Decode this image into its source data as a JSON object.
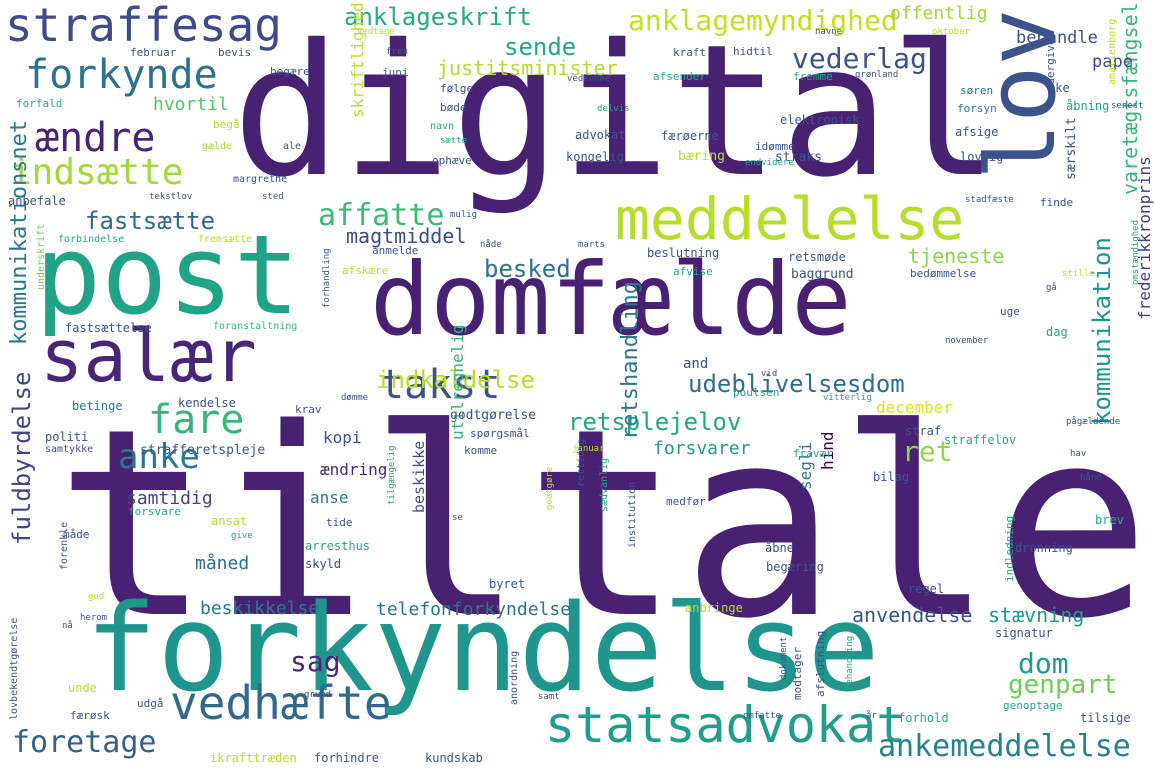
{
  "words": [
    {
      "text": "tiltale",
      "color": "#482173"
    },
    {
      "text": "digital",
      "color": "#482173"
    },
    {
      "text": "forkyndelse",
      "color": "#1f968b"
    },
    {
      "text": "domfælde",
      "color": "#482173"
    },
    {
      "text": "post",
      "color": "#20a386"
    },
    {
      "text": "lov",
      "color": "#3b528b"
    },
    {
      "text": "salær",
      "color": "#482677"
    },
    {
      "text": "meddelelse",
      "color": "#b5de2b"
    },
    {
      "text": "statsadvokat",
      "color": "#1f9e89"
    },
    {
      "text": "vedhæfte",
      "color": "#31688e"
    },
    {
      "text": "straffesag",
      "color": "#3e4a89"
    },
    {
      "text": "forkynde",
      "color": "#2c728e"
    },
    {
      "text": "takst",
      "color": "#3b528b"
    },
    {
      "text": "ændre",
      "color": "#482475"
    },
    {
      "text": "indsætte",
      "color": "#a2da37"
    },
    {
      "text": "fare",
      "color": "#35b779"
    },
    {
      "text": "anke",
      "color": "#2a788e"
    },
    {
      "text": "ankemeddelelse",
      "color": "#26828e"
    },
    {
      "text": "foretage",
      "color": "#355f8d"
    },
    {
      "text": "genpart",
      "color": "#6ece58"
    },
    {
      "text": "dom",
      "color": "#1e9c89"
    },
    {
      "text": "sag",
      "color": "#482878"
    },
    {
      "text": "ret",
      "color": "#8fd744"
    },
    {
      "text": "fuldbyrdelse",
      "color": "#404688"
    },
    {
      "text": "kommunikationsnet",
      "color": "#2a788e"
    },
    {
      "text": "varetægtsfængsel",
      "color": "#35b779"
    },
    {
      "text": "kommunikation",
      "color": "#1f968b"
    },
    {
      "text": "anklageskrift",
      "color": "#25ab82"
    },
    {
      "text": "anklagemyndighed",
      "color": "#c2df23"
    },
    {
      "text": "sende",
      "color": "#22a884"
    },
    {
      "text": "vederlag",
      "color": "#3b528b"
    },
    {
      "text": "fastsætte",
      "color": "#31688e"
    },
    {
      "text": "affatte",
      "color": "#3aba76"
    },
    {
      "text": "besked",
      "color": "#2d708e"
    },
    {
      "text": "indkaldelse",
      "color": "#b8de29"
    },
    {
      "text": "udeblivelsesdom",
      "color": "#2f6c8e"
    },
    {
      "text": "retsplejelov",
      "color": "#22a884"
    },
    {
      "text": "retshandling",
      "color": "#2a788e"
    },
    {
      "text": "justitsminister",
      "color": "#b0dd2f"
    },
    {
      "text": "tjeneste",
      "color": "#8bd646"
    },
    {
      "text": "magtmiddel",
      "color": "#3e4a89"
    },
    {
      "text": "skriftlighed",
      "color": "#b8de29"
    },
    {
      "text": "hvortil",
      "color": "#54c568"
    },
    {
      "text": "anvendelse",
      "color": "#3b528b"
    },
    {
      "text": "stævning",
      "color": "#1f9a8a"
    },
    {
      "text": "telefonforkyndelse",
      "color": "#2c728e"
    },
    {
      "text": "beskikkelse",
      "color": "#2a788e"
    },
    {
      "text": "frederikkronprins",
      "color": "#433e85"
    },
    {
      "text": "offentlig",
      "color": "#a2da37"
    },
    {
      "text": "behandle",
      "color": "#3b528b"
    },
    {
      "text": "pape",
      "color": "#3e4a89"
    },
    {
      "text": "december",
      "color": "#dde318"
    },
    {
      "text": "forsvarer",
      "color": "#1f9e89"
    },
    {
      "text": "samtidig",
      "color": "#414487"
    },
    {
      "text": "måned",
      "color": "#2e6e8e"
    },
    {
      "text": "kopi",
      "color": "#3b528b"
    },
    {
      "text": "ændring",
      "color": "#482878"
    },
    {
      "text": "anse",
      "color": "#2a788e"
    },
    {
      "text": "segli",
      "color": "#2a788e"
    },
    {
      "text": "hind",
      "color": "#440154"
    },
    {
      "text": "utilregnelig",
      "color": "#35b779"
    },
    {
      "text": "beskikke",
      "color": "#3b528b"
    },
    {
      "text": "samtykke",
      "color": "#3e4a89"
    },
    {
      "text": "forsvare",
      "color": "#22a884"
    },
    {
      "text": "strafferetspleje",
      "color": "#3b528b"
    },
    {
      "text": "kendelse",
      "color": "#3b528b"
    },
    {
      "text": "betinge",
      "color": "#2a788e"
    },
    {
      "text": "politi",
      "color": "#3b528b"
    },
    {
      "text": "fastsættelse",
      "color": "#3b528b"
    },
    {
      "text": "foranstaltning",
      "color": "#35b779"
    },
    {
      "text": "underskrift",
      "color": "#6ece58"
    },
    {
      "text": "anbefale",
      "color": "#3b528b"
    },
    {
      "text": "forbindelse",
      "color": "#22a884"
    },
    {
      "text": "fremsætte",
      "color": "#b8de29"
    },
    {
      "text": "forfald",
      "color": "#22a884"
    },
    {
      "text": "begå",
      "color": "#b8de29"
    },
    {
      "text": "gælde",
      "color": "#a2da37"
    },
    {
      "text": "ale",
      "color": "#3b528b"
    },
    {
      "text": "margrethe",
      "color": "#3b528b"
    },
    {
      "text": "tekstlov",
      "color": "#3b528b"
    },
    {
      "text": "sted",
      "color": "#3b528b"
    },
    {
      "text": "februar",
      "color": "#3b528b"
    },
    {
      "text": "bevis",
      "color": "#3b528b"
    },
    {
      "text": "juni",
      "color": "#3b528b"
    },
    {
      "text": "begære",
      "color": "#3b528b"
    },
    {
      "text": "følge",
      "color": "#3b528b"
    },
    {
      "text": "bøde",
      "color": "#3b528b"
    },
    {
      "text": "navn",
      "color": "#22a884"
    },
    {
      "text": "sætte",
      "color": "#22a884"
    },
    {
      "text": "ophæve",
      "color": "#3b528b"
    },
    {
      "text": "delvis",
      "color": "#22a884"
    },
    {
      "text": "vedtage",
      "color": "#b8de29"
    },
    {
      "text": "frem",
      "color": "#3b528b"
    },
    {
      "text": "vedkomme",
      "color": "#3b528b"
    },
    {
      "text": "afsender",
      "color": "#22a884"
    },
    {
      "text": "kraft",
      "color": "#3b528b"
    },
    {
      "text": "hidtil",
      "color": "#3b528b"
    },
    {
      "text": "navne",
      "color": "#3b528b"
    },
    {
      "text": "oktober",
      "color": "#b8de29"
    },
    {
      "text": "fremme",
      "color": "#22a884"
    },
    {
      "text": "grønland",
      "color": "#3b528b"
    },
    {
      "text": "ske",
      "color": "#3b528b"
    },
    {
      "text": "åbning",
      "color": "#22a884"
    },
    {
      "text": "søren",
      "color": "#2a788e"
    },
    {
      "text": "forsyn",
      "color": "#2a788e"
    },
    {
      "text": "undergive",
      "color": "#3b528b"
    },
    {
      "text": "amalienborg",
      "color": "#b8de29"
    },
    {
      "text": "senest",
      "color": "#3b528b"
    },
    {
      "text": "særskilt",
      "color": "#3b528b"
    },
    {
      "text": "afsige",
      "color": "#3b528b"
    },
    {
      "text": "lovlig",
      "color": "#3b528b"
    },
    {
      "text": "straks",
      "color": "#3b528b"
    },
    {
      "text": "elektronisk",
      "color": "#3b528b"
    },
    {
      "text": "advokat",
      "color": "#3b528b"
    },
    {
      "text": "færøerne",
      "color": "#3b528b"
    },
    {
      "text": "bæring",
      "color": "#b8de29"
    },
    {
      "text": "kongelig",
      "color": "#3b528b"
    },
    {
      "text": "idømme",
      "color": "#3b528b"
    },
    {
      "text": "endvidere",
      "color": "#22a884"
    },
    {
      "text": "stadfæste",
      "color": "#3b528b"
    },
    {
      "text": "finde",
      "color": "#3b528b"
    },
    {
      "text": "mulig",
      "color": "#3b528b"
    },
    {
      "text": "nåde",
      "color": "#3b528b"
    },
    {
      "text": "marts",
      "color": "#3b528b"
    },
    {
      "text": "anmelde",
      "color": "#3b528b"
    },
    {
      "text": "beslutning",
      "color": "#3b528b"
    },
    {
      "text": "retsmøde",
      "color": "#3b528b"
    },
    {
      "text": "afvise",
      "color": "#22a884"
    },
    {
      "text": "baggrund",
      "color": "#3b528b"
    },
    {
      "text": "bedømmelse",
      "color": "#3b528b"
    },
    {
      "text": "stille",
      "color": "#b8de29"
    },
    {
      "text": "gå",
      "color": "#3b528b"
    },
    {
      "text": "afskære",
      "color": "#b8de29"
    },
    {
      "text": "uge",
      "color": "#3b528b"
    },
    {
      "text": "omstændighed",
      "color": "#22a884"
    },
    {
      "text": "november",
      "color": "#3b528b"
    },
    {
      "text": "forhandling",
      "color": "#3b528b"
    },
    {
      "text": "vid",
      "color": "#3b528b"
    },
    {
      "text": "poulsen",
      "color": "#22a884"
    },
    {
      "text": "krav",
      "color": "#3b528b"
    },
    {
      "text": "dømme",
      "color": "#3b528b"
    },
    {
      "text": "vitterlig",
      "color": "#22a884"
    },
    {
      "text": "godtgørelse",
      "color": "#3b528b"
    },
    {
      "text": "spørgsmål",
      "color": "#3b528b"
    },
    {
      "text": "komme",
      "color": "#3b528b"
    },
    {
      "text": "januar",
      "color": "#b8de29"
    },
    {
      "text": "pågældende",
      "color": "#3b528b"
    },
    {
      "text": "straf",
      "color": "#3b528b"
    },
    {
      "text": "straffelov",
      "color": "#22a884"
    },
    {
      "text": "hav",
      "color": "#3b528b"
    },
    {
      "text": "fravær",
      "color": "#22a884"
    },
    {
      "text": "bilag",
      "color": "#3b528b"
    },
    {
      "text": "hånd",
      "color": "#3b528b"
    },
    {
      "text": "medfør",
      "color": "#3b528b"
    },
    {
      "text": "tilgængelig",
      "color": "#22a884"
    },
    {
      "text": "godtgøre",
      "color": "#b8de29"
    },
    {
      "text": "rettidig",
      "color": "#3b528b"
    },
    {
      "text": "sædvanlig",
      "color": "#22a884"
    },
    {
      "text": "institution",
      "color": "#3b528b"
    },
    {
      "text": "se",
      "color": "#3b528b"
    },
    {
      "text": "ansat",
      "color": "#b8de29"
    },
    {
      "text": "tide",
      "color": "#3b528b"
    },
    {
      "text": "arresthus",
      "color": "#22a884"
    },
    {
      "text": "skyld",
      "color": "#3b528b"
    },
    {
      "text": "byret",
      "color": "#3b528b"
    },
    {
      "text": "give",
      "color": "#22a884"
    },
    {
      "text": "måde",
      "color": "#3b528b"
    },
    {
      "text": "forenkle",
      "color": "#3b528b"
    },
    {
      "text": "gud",
      "color": "#b8de29"
    },
    {
      "text": "herom",
      "color": "#3b528b"
    },
    {
      "text": "nå",
      "color": "#3b528b"
    },
    {
      "text": "lovbekendtgørelse",
      "color": "#3b528b"
    },
    {
      "text": "unde",
      "color": "#b8de29"
    },
    {
      "text": "grund",
      "color": "#3b528b"
    },
    {
      "text": "udgå",
      "color": "#3b528b"
    },
    {
      "text": "færøsk",
      "color": "#3b528b"
    },
    {
      "text": "anordning",
      "color": "#3b528b"
    },
    {
      "text": "dokument",
      "color": "#3b528b"
    },
    {
      "text": "modtager",
      "color": "#3b528b"
    },
    {
      "text": "afslutning",
      "color": "#3b528b"
    },
    {
      "text": "behandling",
      "color": "#22a884"
    },
    {
      "text": "omfatte",
      "color": "#3b528b"
    },
    {
      "text": "år",
      "color": "#3b528b"
    },
    {
      "text": "forhold",
      "color": "#22a884"
    },
    {
      "text": "tilsige",
      "color": "#3b528b"
    },
    {
      "text": "genoptage",
      "color": "#22a884"
    },
    {
      "text": "signatur",
      "color": "#3b528b"
    },
    {
      "text": "dronning",
      "color": "#3b528b"
    },
    {
      "text": "brev",
      "color": "#22a884"
    },
    {
      "text": "regel",
      "color": "#3b528b"
    },
    {
      "text": "indledning",
      "color": "#22a884"
    },
    {
      "text": "åbne",
      "color": "#3b528b"
    },
    {
      "text": "begæring",
      "color": "#3b528b"
    },
    {
      "text": "anbringe",
      "color": "#b8de29"
    },
    {
      "text": "ikrafttræden",
      "color": "#b8de29"
    },
    {
      "text": "forhindre",
      "color": "#3b528b"
    },
    {
      "text": "kundskab",
      "color": "#3b528b"
    },
    {
      "text": "samt",
      "color": "#3b528b"
    },
    {
      "text": "and",
      "color": "#3b528b"
    },
    {
      "text": "dag",
      "color": "#22a884"
    }
  ]
}
